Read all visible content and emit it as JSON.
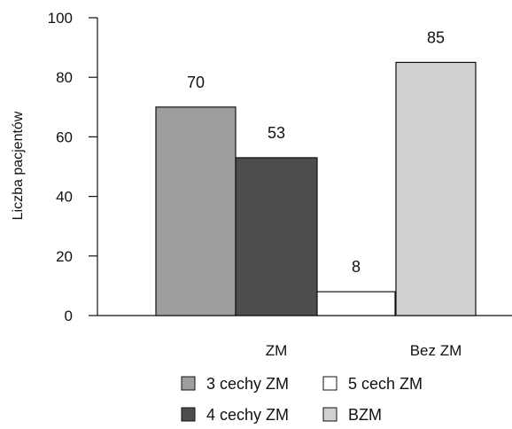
{
  "chart_data": {
    "type": "bar",
    "ylabel": "Liczba pacjentów",
    "ylim": [
      0,
      100
    ],
    "yticks": [
      "0",
      "20",
      "40",
      "60",
      "80",
      "100"
    ],
    "groups": [
      {
        "label": "ZM",
        "series": [
          "3 cechy ZM",
          "4 cechy ZM",
          "5 cech ZM"
        ]
      },
      {
        "label": "Bez ZM",
        "series": [
          "BZM"
        ]
      }
    ],
    "series": [
      {
        "name": "3 cechy ZM",
        "values": [
          70
        ],
        "color": "#9e9e9e"
      },
      {
        "name": "4 cechy ZM",
        "values": [
          53
        ],
        "color": "#4d4d4d"
      },
      {
        "name": "5 cech ZM",
        "values": [
          8
        ],
        "color": "#ffffff"
      },
      {
        "name": "BZM",
        "values": [
          85
        ],
        "color": "#d0d0d0"
      }
    ],
    "data_labels": [
      "70",
      "53",
      "8",
      "85"
    ],
    "legend": {
      "placement": "bottom",
      "items": [
        "3 cechy ZM",
        "5 cech ZM",
        "4 cechy ZM",
        "BZM"
      ]
    },
    "grid": false
  }
}
